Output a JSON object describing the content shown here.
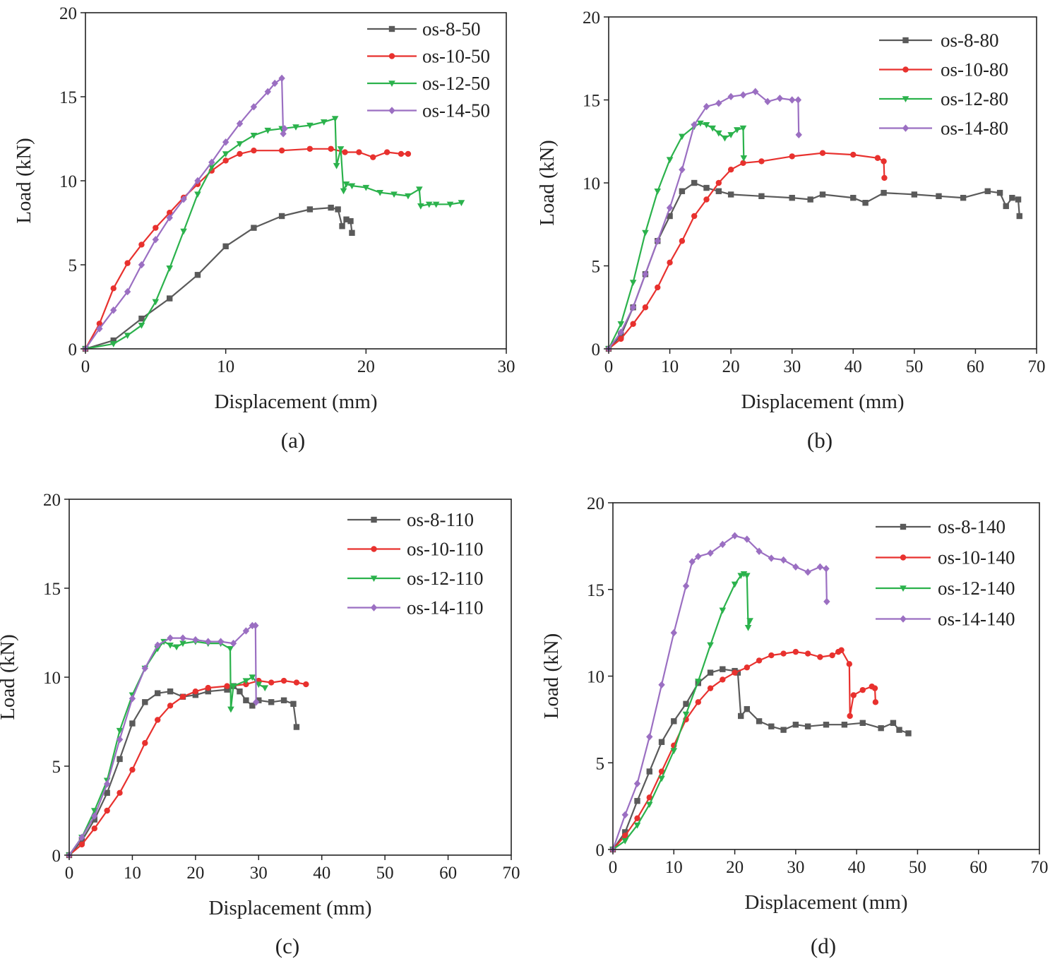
{
  "chart_data": [
    {
      "type": "line",
      "caption": "(a)",
      "xlabel": "Displacement (mm)",
      "ylabel": "Load (kN)",
      "xlim": [
        0,
        30
      ],
      "ylim": [
        0,
        20
      ],
      "xticks": [
        0,
        10,
        20,
        30
      ],
      "yticks": [
        0,
        5,
        10,
        15,
        20
      ],
      "legend_position": "top-right",
      "series": [
        {
          "name": "os-8-50",
          "color": "#5a5a5a",
          "marker": "square",
          "x": [
            0,
            2,
            4,
            6,
            8,
            10,
            12,
            14,
            16,
            17.5,
            18,
            18.3,
            18.6,
            18.9,
            19
          ],
          "y": [
            0,
            0.5,
            1.8,
            3.0,
            4.4,
            6.1,
            7.2,
            7.9,
            8.3,
            8.4,
            8.3,
            7.3,
            7.7,
            7.6,
            6.9
          ]
        },
        {
          "name": "os-10-50",
          "color": "#e8312e",
          "marker": "circle",
          "x": [
            0,
            1,
            2,
            3,
            4,
            5,
            6,
            7,
            8,
            9,
            10,
            11,
            12,
            14,
            16,
            17.5,
            18.5,
            19.5,
            20.5,
            21.5,
            22.5,
            23
          ],
          "y": [
            0,
            1.5,
            3.6,
            5.1,
            6.2,
            7.2,
            8.1,
            9.0,
            9.8,
            10.6,
            11.2,
            11.6,
            11.8,
            11.8,
            11.9,
            11.9,
            11.7,
            11.7,
            11.4,
            11.7,
            11.6,
            11.6
          ]
        },
        {
          "name": "os-12-50",
          "color": "#2bb24c",
          "marker": "triangle-down",
          "x": [
            0,
            2,
            3,
            4,
            5,
            6,
            7,
            8,
            9,
            10,
            11,
            12,
            13,
            14,
            15,
            16,
            17,
            17.8,
            17.9,
            18.2,
            18.4,
            18.6,
            19,
            20,
            21,
            22,
            23,
            23.8,
            23.9,
            24.5,
            25,
            26,
            26.8
          ],
          "y": [
            0,
            0.3,
            0.8,
            1.4,
            2.8,
            4.8,
            7.0,
            9.2,
            10.8,
            11.6,
            12.2,
            12.7,
            13.0,
            13.1,
            13.2,
            13.3,
            13.5,
            13.7,
            10.9,
            11.9,
            9.4,
            9.8,
            9.7,
            9.6,
            9.3,
            9.2,
            9.1,
            9.5,
            8.5,
            8.6,
            8.6,
            8.6,
            8.7
          ]
        },
        {
          "name": "os-14-50",
          "color": "#9b6fc2",
          "marker": "diamond",
          "x": [
            0,
            1,
            2,
            3,
            4,
            5,
            6,
            7,
            8,
            9,
            10,
            11,
            12,
            13,
            13.5,
            14,
            14.1,
            14.2
          ],
          "y": [
            0,
            1.2,
            2.3,
            3.4,
            5.0,
            6.5,
            7.8,
            8.9,
            10.0,
            11.1,
            12.3,
            13.4,
            14.4,
            15.3,
            15.8,
            16.1,
            12.8,
            13.1
          ]
        }
      ]
    },
    {
      "type": "line",
      "caption": "(b)",
      "xlabel": "Displacement (mm)",
      "ylabel": "Load (kN)",
      "xlim": [
        0,
        70
      ],
      "ylim": [
        0,
        20
      ],
      "xticks": [
        0,
        10,
        20,
        30,
        40,
        50,
        60,
        70
      ],
      "yticks": [
        0,
        5,
        10,
        15,
        20
      ],
      "legend_position": "top-right",
      "series": [
        {
          "name": "os-8-80",
          "color": "#5a5a5a",
          "marker": "square",
          "x": [
            0,
            2,
            4,
            6,
            8,
            10,
            12,
            14,
            16,
            18,
            20,
            25,
            30,
            33,
            35,
            40,
            42,
            45,
            50,
            54,
            58,
            62,
            64,
            65,
            66,
            67,
            67.2
          ],
          "y": [
            0,
            0.8,
            2.5,
            4.5,
            6.5,
            8.0,
            9.5,
            10.0,
            9.7,
            9.5,
            9.3,
            9.2,
            9.1,
            9.0,
            9.3,
            9.1,
            8.8,
            9.4,
            9.3,
            9.2,
            9.1,
            9.5,
            9.4,
            8.6,
            9.1,
            9.0,
            8.0
          ]
        },
        {
          "name": "os-10-80",
          "color": "#e8312e",
          "marker": "circle",
          "x": [
            0,
            2,
            4,
            6,
            8,
            10,
            12,
            14,
            16,
            18,
            20,
            22,
            25,
            30,
            35,
            40,
            44,
            45,
            45.1
          ],
          "y": [
            0,
            0.6,
            1.5,
            2.5,
            3.7,
            5.2,
            6.5,
            8.0,
            9.0,
            10.0,
            10.8,
            11.2,
            11.3,
            11.6,
            11.8,
            11.7,
            11.5,
            11.3,
            10.3
          ]
        },
        {
          "name": "os-12-80",
          "color": "#2bb24c",
          "marker": "triangle-down",
          "x": [
            0,
            2,
            4,
            6,
            8,
            10,
            12,
            14,
            15,
            16,
            17,
            18,
            19,
            20,
            21,
            22,
            22.1
          ],
          "y": [
            0,
            1.5,
            4.0,
            7.0,
            9.5,
            11.4,
            12.8,
            13.4,
            13.6,
            13.5,
            13.3,
            13.0,
            12.7,
            12.9,
            13.2,
            13.3,
            11.5
          ]
        },
        {
          "name": "os-14-80",
          "color": "#9b6fc2",
          "marker": "diamond",
          "x": [
            0,
            2,
            4,
            6,
            8,
            10,
            12,
            14,
            16,
            18,
            20,
            22,
            24,
            26,
            28,
            30,
            31,
            31.1
          ],
          "y": [
            0,
            1.0,
            2.5,
            4.5,
            6.5,
            8.5,
            10.8,
            13.5,
            14.6,
            14.8,
            15.2,
            15.3,
            15.5,
            14.9,
            15.1,
            15.0,
            15.0,
            12.9
          ]
        }
      ]
    },
    {
      "type": "line",
      "caption": "(c)",
      "xlabel": "Displacement (mm)",
      "ylabel": "Load (kN)",
      "xlim": [
        0,
        70
      ],
      "ylim": [
        0,
        20
      ],
      "xticks": [
        0,
        10,
        20,
        30,
        40,
        50,
        60,
        70
      ],
      "yticks": [
        0,
        5,
        10,
        15,
        20
      ],
      "legend_position": "top-right",
      "series": [
        {
          "name": "os-8-110",
          "color": "#5a5a5a",
          "marker": "square",
          "x": [
            0,
            2,
            4,
            6,
            8,
            10,
            12,
            14,
            16,
            18,
            20,
            22,
            25,
            26,
            27,
            28,
            29,
            30,
            32,
            34,
            35.5,
            36
          ],
          "y": [
            0,
            0.8,
            2.0,
            3.5,
            5.4,
            7.4,
            8.6,
            9.1,
            9.2,
            8.9,
            9.0,
            9.2,
            9.3,
            9.5,
            9.2,
            8.7,
            8.4,
            8.7,
            8.6,
            8.7,
            8.5,
            7.2
          ]
        },
        {
          "name": "os-10-110",
          "color": "#e8312e",
          "marker": "circle",
          "x": [
            0,
            2,
            4,
            6,
            8,
            10,
            12,
            14,
            16,
            18,
            20,
            22,
            25,
            28,
            30,
            32,
            34,
            36,
            37.5
          ],
          "y": [
            0,
            0.6,
            1.5,
            2.5,
            3.5,
            4.8,
            6.3,
            7.6,
            8.4,
            8.9,
            9.2,
            9.4,
            9.5,
            9.6,
            9.8,
            9.7,
            9.8,
            9.7,
            9.6
          ]
        },
        {
          "name": "os-12-110",
          "color": "#2bb24c",
          "marker": "triangle-down",
          "x": [
            0,
            2,
            4,
            6,
            8,
            10,
            12,
            14,
            15,
            16,
            17,
            18,
            20,
            22,
            24,
            25.5,
            25.6,
            26,
            28,
            29,
            30,
            31
          ],
          "y": [
            0,
            1.0,
            2.5,
            4.2,
            7.0,
            9.0,
            10.5,
            11.6,
            12.0,
            11.8,
            11.7,
            11.9,
            12.0,
            11.9,
            11.9,
            11.6,
            8.2,
            9.5,
            9.8,
            10.0,
            9.6,
            9.4
          ]
        },
        {
          "name": "os-14-110",
          "color": "#9b6fc2",
          "marker": "diamond",
          "x": [
            0,
            2,
            4,
            6,
            8,
            10,
            12,
            14,
            16,
            18,
            20,
            22,
            24,
            26,
            28,
            29,
            29.5,
            29.6
          ],
          "y": [
            0,
            1.0,
            2.2,
            4.0,
            6.5,
            8.8,
            10.5,
            11.8,
            12.2,
            12.2,
            12.1,
            12.0,
            12.0,
            11.9,
            12.6,
            12.9,
            12.9,
            8.6
          ]
        }
      ]
    },
    {
      "type": "line",
      "caption": "(d)",
      "xlabel": "Displacement (mm)",
      "ylabel": "Load (kN)",
      "xlim": [
        0,
        70
      ],
      "ylim": [
        0,
        20
      ],
      "xticks": [
        0,
        10,
        20,
        30,
        40,
        50,
        60,
        70
      ],
      "yticks": [
        0,
        5,
        10,
        15,
        20
      ],
      "legend_position": "top-right",
      "series": [
        {
          "name": "os-8-140",
          "color": "#5a5a5a",
          "marker": "square",
          "x": [
            0,
            2,
            4,
            6,
            8,
            10,
            12,
            14,
            16,
            18,
            20,
            20.5,
            21,
            22,
            24,
            26,
            28,
            30,
            32,
            35,
            38,
            41,
            44,
            46,
            47,
            48.5
          ],
          "y": [
            0,
            1.0,
            2.8,
            4.5,
            6.2,
            7.4,
            8.4,
            9.6,
            10.2,
            10.4,
            10.3,
            10.2,
            7.7,
            8.1,
            7.4,
            7.1,
            6.9,
            7.2,
            7.1,
            7.2,
            7.2,
            7.3,
            7.0,
            7.3,
            6.9,
            6.7
          ]
        },
        {
          "name": "os-10-140",
          "color": "#e8312e",
          "marker": "circle",
          "x": [
            0,
            2,
            4,
            6,
            8,
            10,
            12,
            14,
            16,
            18,
            20,
            22,
            24,
            26,
            28,
            30,
            32,
            34,
            36,
            37,
            37.5,
            38.8,
            38.9,
            39.5,
            41,
            42.5,
            43,
            43.1
          ],
          "y": [
            0,
            0.8,
            1.8,
            3.0,
            4.5,
            6.0,
            7.5,
            8.5,
            9.3,
            9.8,
            10.2,
            10.5,
            10.9,
            11.2,
            11.3,
            11.4,
            11.3,
            11.1,
            11.2,
            11.4,
            11.5,
            10.7,
            7.7,
            8.9,
            9.2,
            9.4,
            9.3,
            8.5
          ]
        },
        {
          "name": "os-12-140",
          "color": "#2bb24c",
          "marker": "triangle-down",
          "x": [
            0,
            2,
            4,
            6,
            8,
            10,
            12,
            14,
            16,
            18,
            20,
            21,
            21.5,
            22,
            22.2,
            22.5
          ],
          "y": [
            0,
            0.5,
            1.4,
            2.6,
            4.1,
            5.7,
            7.8,
            9.7,
            11.8,
            13.8,
            15.3,
            15.8,
            15.9,
            15.8,
            12.8,
            13.2
          ]
        },
        {
          "name": "os-14-140",
          "color": "#9b6fc2",
          "marker": "diamond",
          "x": [
            0,
            2,
            4,
            6,
            8,
            10,
            12,
            13,
            14,
            16,
            18,
            20,
            22,
            24,
            26,
            28,
            30,
            32,
            34,
            35,
            35.1
          ],
          "y": [
            0,
            2.0,
            3.8,
            6.5,
            9.5,
            12.5,
            15.2,
            16.6,
            16.9,
            17.1,
            17.6,
            18.1,
            17.9,
            17.2,
            16.8,
            16.7,
            16.3,
            16.0,
            16.3,
            16.2,
            14.3
          ]
        }
      ]
    }
  ]
}
